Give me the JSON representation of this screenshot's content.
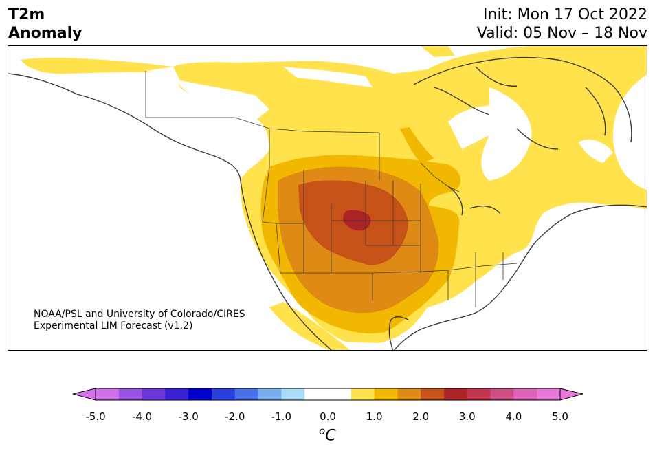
{
  "header": {
    "title_line1": "T2m",
    "title_line2": "Anomaly",
    "init": "Init: Mon 17 Oct 2022",
    "valid": "Valid: 05 Nov – 18 Nov"
  },
  "credit": {
    "line1": "NOAA/PSL and University of Colorado/CIRES",
    "line2": "Experimental LIM Forecast (v1.2)"
  },
  "colorbar": {
    "unit_base": "C",
    "unit_sup": "o",
    "ticks": [
      "-5.0",
      "-4.0",
      "-3.0",
      "-2.0",
      "-1.0",
      "0.0",
      "1.0",
      "2.0",
      "3.0",
      "4.0",
      "5.0"
    ],
    "colors": [
      "#d070e8",
      "#9a50e0",
      "#6a38da",
      "#3820d4",
      "#0000cc",
      "#2a40dc",
      "#4a70e8",
      "#78aef0",
      "#aadcf8",
      "#ffffff",
      "#ffffff",
      "#ffe24c",
      "#f2b800",
      "#de8a14",
      "#c65218",
      "#ad2224",
      "#c43650",
      "#cc4e80",
      "#dc64b8",
      "#e878d8"
    ],
    "under_color": "#d870ee",
    "over_color": "#e878d8"
  },
  "map": {
    "colors": {
      "anomaly_0_5": "#ffe24c",
      "anomaly_1_0": "#f2b800",
      "anomaly_1_5": "#de8a14",
      "anomaly_2_0": "#c65218",
      "anomaly_2_5": "#ad2224",
      "coastline": "#3a3a3a"
    }
  }
}
